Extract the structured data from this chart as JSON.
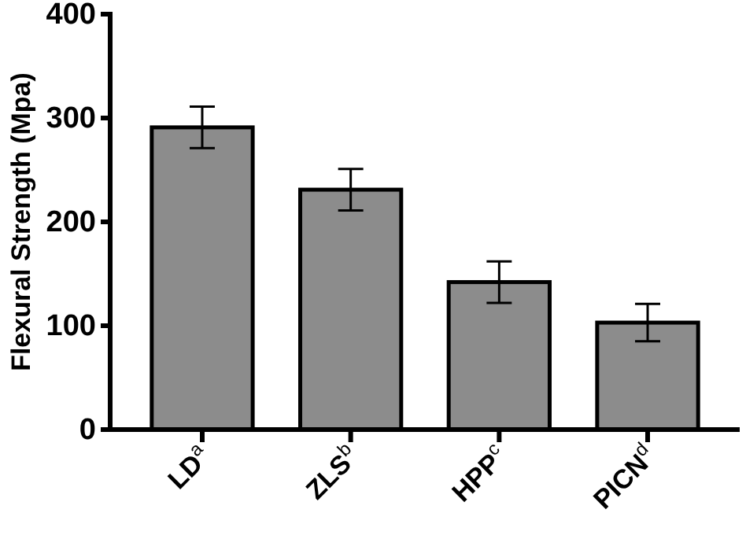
{
  "chart_data": {
    "type": "bar",
    "ylabel": "Flexural Strength (Mpa)",
    "categories": [
      "LD$^{a}$",
      "ZLS$^{b}$",
      "HPP$^{c}$",
      "PICN$^{d}$"
    ],
    "values": [
      291,
      231,
      142,
      103
    ],
    "errors": [
      20,
      20,
      20,
      18
    ],
    "color": "#8c8c8c",
    "ylim": [
      0,
      400
    ],
    "yticks": [
      0,
      100,
      200,
      300,
      400
    ],
    "grid": false
  }
}
